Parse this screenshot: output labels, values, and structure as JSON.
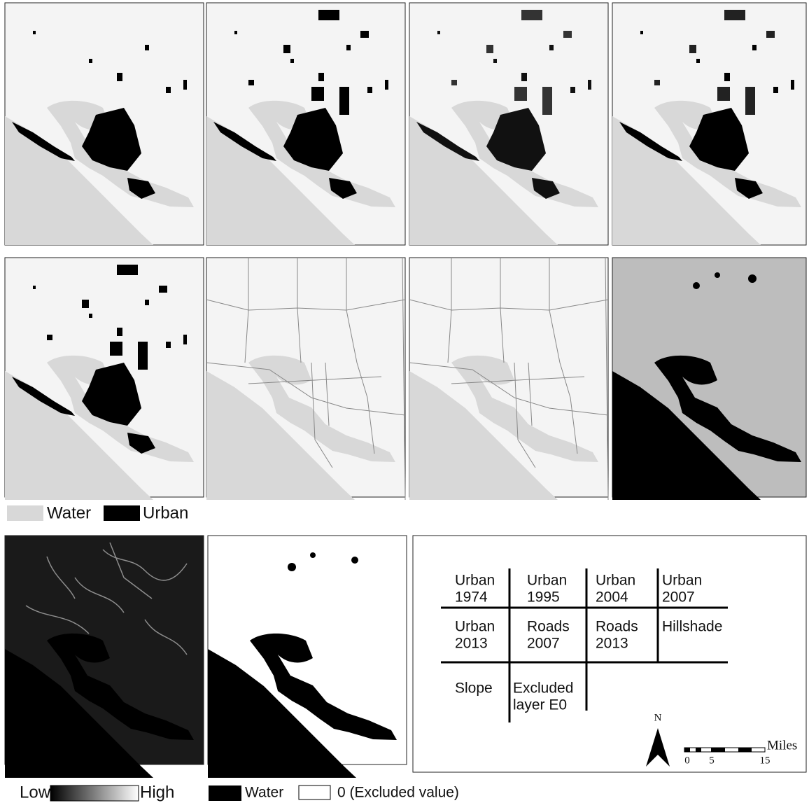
{
  "legend_top": {
    "water": "Water",
    "urban": "Urban"
  },
  "layout_table": {
    "rows": [
      [
        [
          "Urban",
          "1974"
        ],
        [
          "Urban",
          "1995"
        ],
        [
          "Urban",
          "2004"
        ],
        [
          "Urban",
          "2007"
        ]
      ],
      [
        [
          "Urban",
          "2013"
        ],
        [
          "Roads",
          "2007"
        ],
        [
          "Roads",
          "2013"
        ],
        [
          "Hillshade"
        ]
      ],
      [
        [
          "Slope"
        ],
        [
          "Excluded",
          "layer E0"
        ]
      ]
    ]
  },
  "north": "N",
  "scale": {
    "labels": [
      "0",
      "5",
      "15"
    ],
    "unit": "Miles"
  },
  "legend_bottom": {
    "low": "Low",
    "high": "High",
    "water": "Water",
    "excluded": "0 (Excluded value)"
  }
}
